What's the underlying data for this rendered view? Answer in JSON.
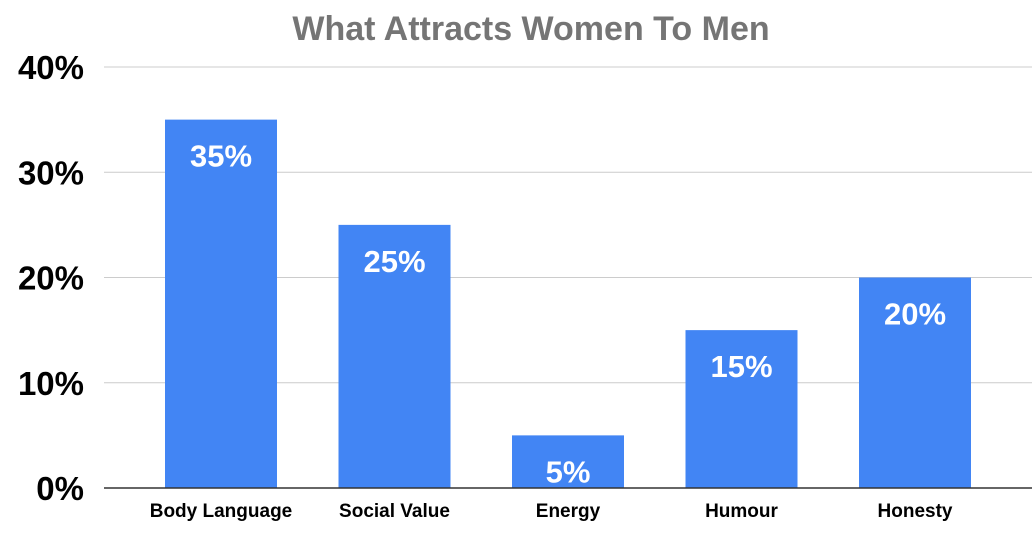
{
  "chart_data": {
    "type": "bar",
    "title": "What Attracts Women To Men",
    "categories": [
      "Body Language",
      "Social Value",
      "Energy",
      "Humour",
      "Honesty"
    ],
    "values": [
      35,
      25,
      5,
      15,
      20
    ],
    "data_labels": [
      "35%",
      "25%",
      "5%",
      "15%",
      "20%"
    ],
    "yticks": [
      0,
      10,
      20,
      30,
      40
    ],
    "ytick_labels": [
      "0%",
      "10%",
      "20%",
      "30%",
      "40%"
    ],
    "ylim": [
      0,
      40
    ],
    "xlabel": "",
    "ylabel": "",
    "grid": true,
    "legend": "none",
    "bar_color": "#4285f4"
  }
}
